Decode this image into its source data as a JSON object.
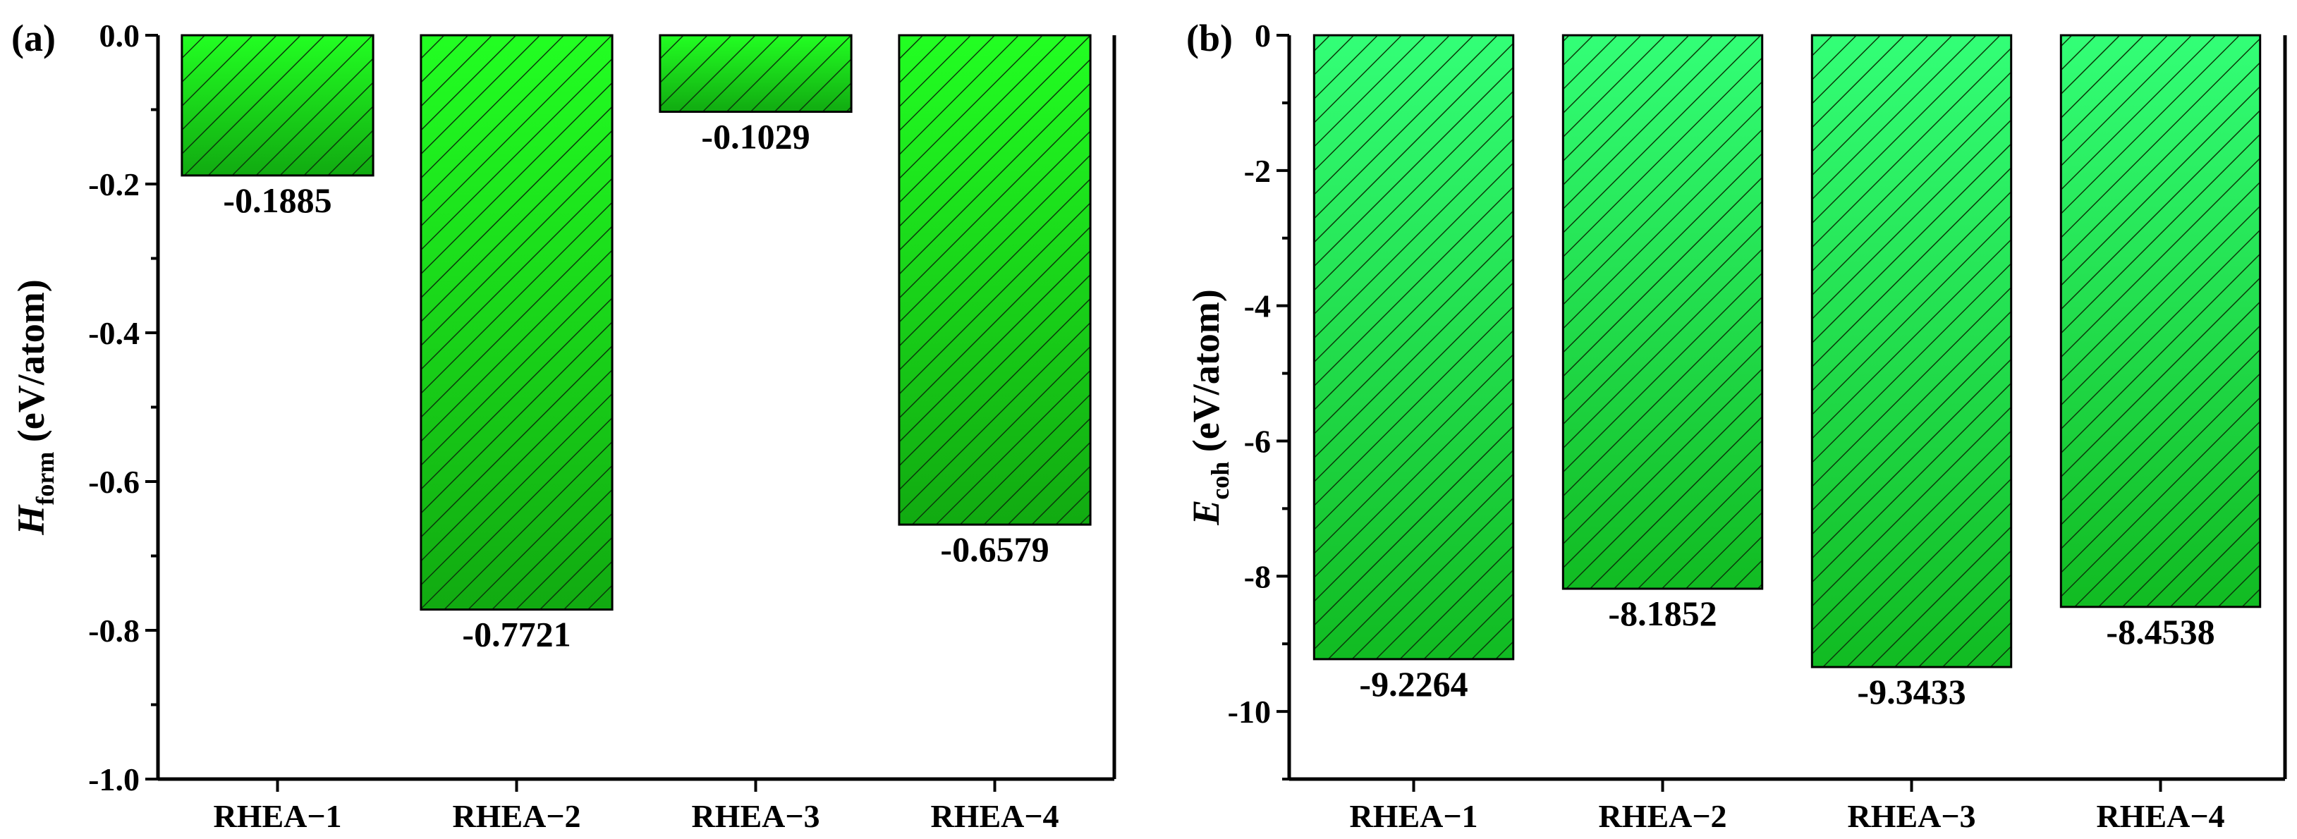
{
  "chart_data": [
    {
      "type": "bar",
      "panel_label": "(a)",
      "categories": [
        "RHEA−1",
        "RHEA−2",
        "RHEA−3",
        "RHEA−4"
      ],
      "values": [
        -0.1885,
        -0.7721,
        -0.1029,
        -0.6579
      ],
      "data_labels": [
        "-0.1885",
        "-0.7721",
        "-0.1029",
        "-0.6579"
      ],
      "ylabel_main": "H",
      "ylabel_sub": "form",
      "ylabel_unit": " (eV/atom)",
      "ylim": [
        -1.0,
        0.0
      ],
      "yticks": [
        0.0,
        -0.2,
        -0.4,
        -0.6,
        -0.8,
        -1.0
      ],
      "ytick_labels": [
        "0.0",
        "-0.2",
        "-0.4",
        "-0.6",
        "-0.8",
        "-1.0"
      ],
      "minor_ticks": true,
      "grid": false,
      "bar_color_top": "#22ff22",
      "bar_color_bottom": "#11aa11",
      "hatch": "diagonal"
    },
    {
      "type": "bar",
      "panel_label": "(b)",
      "categories": [
        "RHEA−1",
        "RHEA−2",
        "RHEA−3",
        "RHEA−4"
      ],
      "values": [
        -9.2264,
        -8.1852,
        -9.3433,
        -8.4538
      ],
      "data_labels": [
        "-9.2264",
        "-8.1852",
        "-9.3433",
        "-8.4538"
      ],
      "ylabel_main": "E",
      "ylabel_sub": "coh",
      "ylabel_unit": " (eV/atom)",
      "ylim": [
        -11.0,
        0.0
      ],
      "yticks": [
        0,
        -2,
        -4,
        -6,
        -8,
        -10
      ],
      "ytick_labels": [
        "0",
        "-2",
        "-4",
        "-6",
        "-8",
        "-10"
      ],
      "minor_ticks": true,
      "grid": false,
      "bar_color_top": "#33ff77",
      "bar_color_bottom": "#11bb22",
      "hatch": "diagonal"
    }
  ]
}
